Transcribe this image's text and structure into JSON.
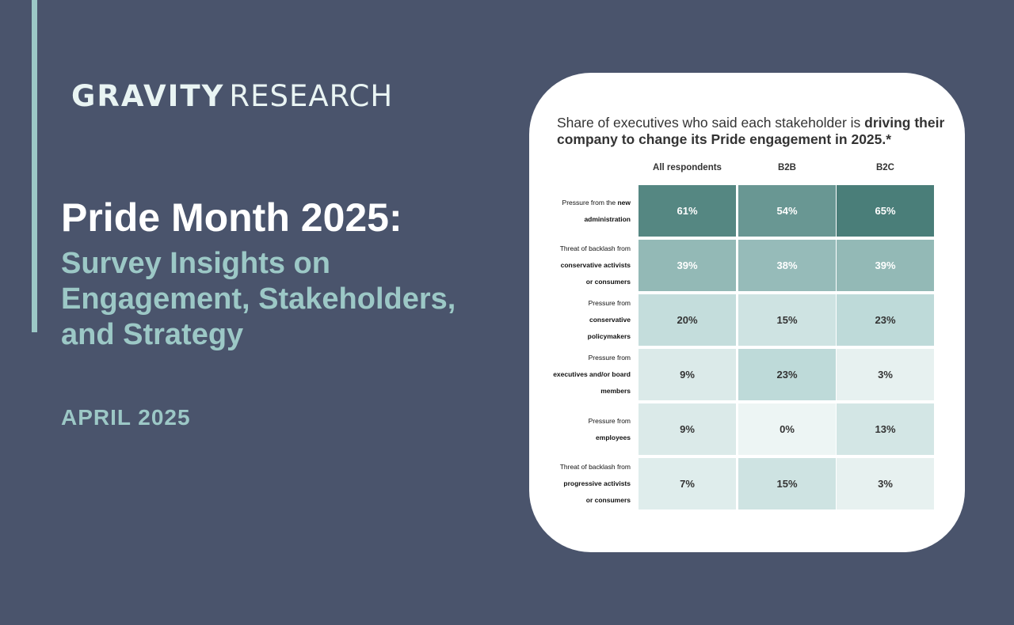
{
  "logo": {
    "bold": "GRAVITY",
    "light": "RESEARCH"
  },
  "title": "Pride Month 2025:",
  "subtitle": "Survey Insights on\nEngagement, Stakeholders,\nand Strategy",
  "date": "APRIL 2025",
  "colors": {
    "background": "#4a546c",
    "accent": "#9cc8c6",
    "heat_scale": [
      "#edf5f4",
      "#b8d6d5",
      "#4a7e79"
    ]
  },
  "chart_data": {
    "type": "heatmap",
    "title_plain": "Share of executives who said each stakeholder is ",
    "title_bold": "driving their company to change its Pride engagement in 2025.*",
    "columns": [
      "All respondents",
      "B2B",
      "B2C"
    ],
    "rows": [
      {
        "label_lines": [
          "Pressure from the ",
          "new",
          "administration"
        ],
        "bold_from": 1,
        "values": [
          "61%",
          "54%",
          "65%"
        ]
      },
      {
        "label_lines": [
          "Threat of backlash from",
          "conservative activists",
          "or consumers"
        ],
        "bold_from": 1,
        "values": [
          "39%",
          "38%",
          "39%"
        ]
      },
      {
        "label_lines": [
          "Pressure from",
          "conservative",
          "policymakers"
        ],
        "bold_from": 1,
        "values": [
          "20%",
          "15%",
          "23%"
        ]
      },
      {
        "label_lines": [
          "Pressure from",
          "executives and/or board",
          "members"
        ],
        "bold_from": 1,
        "values": [
          "9%",
          "23%",
          "3%"
        ]
      },
      {
        "label_lines": [
          "Pressure from",
          "employees"
        ],
        "bold_from": 1,
        "values": [
          "9%",
          "0%",
          "13%"
        ]
      },
      {
        "label_lines": [
          "Threat of backlash from",
          "progressive activists",
          "or consumers"
        ],
        "bold_from": 1,
        "values": [
          "7%",
          "15%",
          "3%"
        ]
      }
    ]
  }
}
